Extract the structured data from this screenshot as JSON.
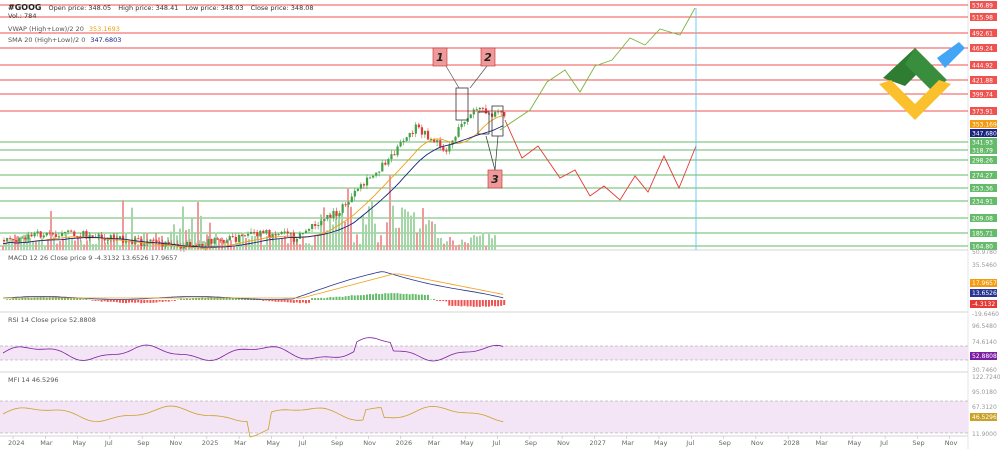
{
  "header": {
    "ticker": "#GOOG",
    "ohlc": [
      "Open price: 348.05",
      "High price: 348.41",
      "Low price: 348.03",
      "Close price: 348.08"
    ],
    "volume": "Vol.: 784",
    "vwap_label": "VWAP (High+Low)/2 20",
    "vwap_value": "353.1693",
    "sma_label": "SMA 20 (High+Low)/2 0",
    "sma_value": "347.6803"
  },
  "colors": {
    "up": "#43a047",
    "down": "#e53935",
    "level_line": "#ef5350",
    "green_line": "#66bb6a",
    "sma": "#1a237e",
    "vwap": "#f39c12",
    "bull_path": "#7cb342",
    "bear_path": "#e53935",
    "rsi": "#7b1fa2",
    "mfi": "#c9a227",
    "band": "#f3e5f5",
    "marker": "#ef9a9a",
    "vline": "#4fc3f7"
  },
  "chart_data": [
    {
      "type": "line",
      "pane": "price",
      "x_ticks": [
        "2024",
        "Mar",
        "May",
        "Jul",
        "Sep",
        "Nov",
        "2025",
        "Mar",
        "May",
        "Jul",
        "Sep",
        "Nov",
        "2026",
        "Mar",
        "May",
        "Jul",
        "Sep",
        "Nov",
        "2027",
        "Mar",
        "May",
        "Jul",
        "Sep",
        "Nov",
        "2028",
        "Mar",
        "May",
        "Jul",
        "Sep",
        "Nov"
      ],
      "levels": [
        {
          "value": "536.89",
          "style": "red"
        },
        {
          "value": "515.98",
          "style": "red"
        },
        {
          "value": "492.61",
          "style": "red"
        },
        {
          "value": "469.24",
          "style": "red"
        },
        {
          "value": "444.92",
          "style": "red"
        },
        {
          "value": "421.88",
          "style": "red"
        },
        {
          "value": "399.74",
          "style": "red"
        },
        {
          "value": "373.91",
          "style": "red"
        },
        {
          "value": "341.93",
          "style": "green"
        },
        {
          "value": "318.79",
          "style": "green"
        },
        {
          "value": "298.26",
          "style": "green"
        },
        {
          "value": "274.27",
          "style": "green"
        },
        {
          "value": "253.36",
          "style": "green"
        },
        {
          "value": "234.91",
          "style": "green"
        },
        {
          "value": "209.08",
          "style": "green"
        },
        {
          "value": "185.71",
          "style": "green"
        },
        {
          "value": "164.80",
          "style": "green"
        }
      ],
      "current_labels": {
        "vwap": "353.1693",
        "sma": "347.6803"
      },
      "annotations": [
        "1",
        "2",
        "3"
      ],
      "bull_scenario": [
        [
          500,
          130
        ],
        [
          530,
          110
        ],
        [
          547,
          82
        ],
        [
          565,
          70
        ],
        [
          580,
          92
        ],
        [
          595,
          66
        ],
        [
          612,
          60
        ],
        [
          630,
          38
        ],
        [
          645,
          45
        ],
        [
          660,
          29
        ],
        [
          680,
          35
        ],
        [
          695,
          8
        ]
      ],
      "bear_scenario": [
        [
          505,
          120
        ],
        [
          522,
          158
        ],
        [
          538,
          146
        ],
        [
          560,
          178
        ],
        [
          575,
          170
        ],
        [
          590,
          196
        ],
        [
          604,
          186
        ],
        [
          620,
          200
        ],
        [
          635,
          176
        ],
        [
          648,
          192
        ],
        [
          664,
          156
        ],
        [
          679,
          188
        ],
        [
          696,
          146
        ]
      ]
    },
    {
      "type": "line",
      "pane": "MACD",
      "title": "MACD 12 26 Close price 9",
      "values_shown": [
        "-4.3132",
        "13.6526",
        "17.9657"
      ],
      "axis_labels": [
        "50.9780",
        "35.5460",
        "17.9657",
        "13.6526",
        "-4.3132",
        "-19.6460"
      ]
    },
    {
      "type": "line",
      "pane": "RSI",
      "title": "RSI 14 Close price",
      "value": "52.8808",
      "axis_labels": [
        "96.5480",
        "74.6140",
        "52.8808",
        "30.7460"
      ]
    },
    {
      "type": "line",
      "pane": "MFI",
      "title": "MFI 14",
      "value": "46.5296",
      "axis_labels": [
        "122.7240",
        "95.0180",
        "67.3120",
        "46.5296",
        "11.9000"
      ]
    }
  ]
}
